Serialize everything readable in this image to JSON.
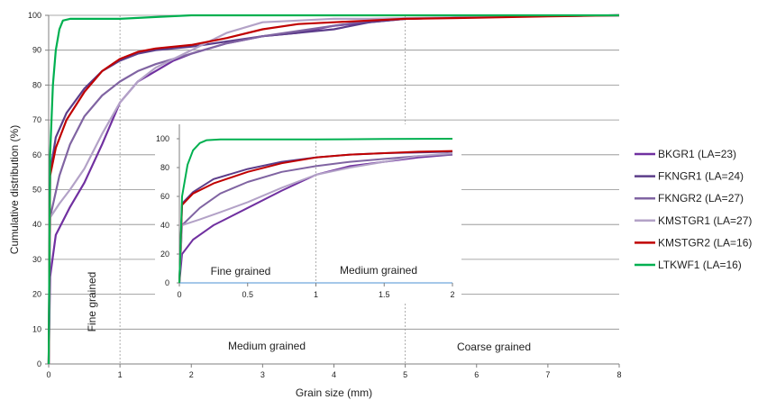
{
  "chart_data": [
    {
      "type": "line",
      "xlabel": "Grain size (mm)",
      "ylabel": "Cumulative distribution (%)",
      "xlim": [
        0,
        8
      ],
      "ylim": [
        0,
        100
      ],
      "xticks": [
        "0",
        "1",
        "2",
        "3",
        "4",
        "5",
        "6",
        "7",
        "8"
      ],
      "yticks": [
        "0",
        "10",
        "20",
        "30",
        "40",
        "50",
        "60",
        "70",
        "80",
        "90",
        "100"
      ],
      "grid": "horizontal",
      "region_labels": [
        "Fine grained",
        "Medium grained",
        "Coarse grained"
      ],
      "region_boundaries": [
        1,
        5
      ],
      "legend_position": "right",
      "series": [
        {
          "name": "BKGR1 (LA=23)",
          "color": "#7030a0",
          "points": [
            [
              0,
              0
            ],
            [
              0.02,
              25
            ],
            [
              0.1,
              37
            ],
            [
              0.3,
              45
            ],
            [
              0.5,
              52
            ],
            [
              0.75,
              63
            ],
            [
              1,
              75
            ],
            [
              1.25,
              81
            ],
            [
              1.5,
              84
            ],
            [
              1.75,
              87
            ],
            [
              2,
              89
            ],
            [
              2.5,
              92
            ],
            [
              3,
              94
            ],
            [
              3.5,
              95
            ],
            [
              4,
              97
            ],
            [
              4.5,
              98
            ],
            [
              5,
              99
            ],
            [
              6,
              99.5
            ],
            [
              7,
              99.8
            ],
            [
              8,
              100
            ]
          ]
        },
        {
          "name": "FKNGR1 (LA=24)",
          "color": "#5c3d8a",
          "points": [
            [
              0,
              0
            ],
            [
              0.02,
              55
            ],
            [
              0.1,
              65
            ],
            [
              0.25,
              72
            ],
            [
              0.5,
              79
            ],
            [
              0.75,
              84
            ],
            [
              1,
              87
            ],
            [
              1.25,
              89
            ],
            [
              1.5,
              90
            ],
            [
              2,
              91
            ],
            [
              2.5,
              92.5
            ],
            [
              3,
              94
            ],
            [
              3.5,
              95
            ],
            [
              4,
              96
            ],
            [
              4.5,
              98
            ],
            [
              5,
              99
            ],
            [
              6,
              99.5
            ],
            [
              7,
              99.8
            ],
            [
              8,
              100
            ]
          ]
        },
        {
          "name": "FKNGR2 (LA=27)",
          "color": "#8064a2",
          "points": [
            [
              0,
              0
            ],
            [
              0.02,
              42
            ],
            [
              0.15,
              54
            ],
            [
              0.3,
              63
            ],
            [
              0.5,
              71
            ],
            [
              0.75,
              77
            ],
            [
              1,
              81
            ],
            [
              1.25,
              84
            ],
            [
              1.5,
              86
            ],
            [
              2,
              89
            ],
            [
              2.5,
              92
            ],
            [
              3,
              94
            ],
            [
              3.5,
              95.5
            ],
            [
              4,
              97
            ],
            [
              4.5,
              98.5
            ],
            [
              5,
              99
            ],
            [
              6,
              99.5
            ],
            [
              7,
              99.8
            ],
            [
              8,
              100
            ]
          ]
        },
        {
          "name": "KMSTGR1 (LA=27)",
          "color": "#b3a2c7",
          "points": [
            [
              0,
              0
            ],
            [
              0.02,
              42
            ],
            [
              0.15,
              46
            ],
            [
              0.3,
              50
            ],
            [
              0.5,
              56
            ],
            [
              0.75,
              66
            ],
            [
              1,
              75
            ],
            [
              1.25,
              81
            ],
            [
              1.5,
              85
            ],
            [
              2,
              90
            ],
            [
              2.5,
              95
            ],
            [
              3,
              98
            ],
            [
              3.5,
              98.5
            ],
            [
              4,
              99
            ],
            [
              4.5,
              99
            ],
            [
              5,
              99.2
            ],
            [
              6,
              99.5
            ],
            [
              7,
              99.8
            ],
            [
              8,
              100
            ]
          ]
        },
        {
          "name": "KMSTGR2 (LA=16)",
          "color": "#c00000",
          "points": [
            [
              0,
              0
            ],
            [
              0.02,
              54
            ],
            [
              0.1,
              62
            ],
            [
              0.25,
              70
            ],
            [
              0.5,
              78
            ],
            [
              0.75,
              84
            ],
            [
              1,
              87.5
            ],
            [
              1.25,
              89.5
            ],
            [
              1.5,
              90.5
            ],
            [
              2,
              91.5
            ],
            [
              2.5,
              93.5
            ],
            [
              3,
              96
            ],
            [
              3.5,
              97.5
            ],
            [
              4,
              98
            ],
            [
              4.5,
              98.5
            ],
            [
              5,
              99
            ],
            [
              6,
              99.3
            ],
            [
              7,
              99.7
            ],
            [
              8,
              100
            ]
          ]
        },
        {
          "name": "LTKWF1 (LA=16)",
          "color": "#00b050",
          "points": [
            [
              0,
              0
            ],
            [
              0.02,
              60
            ],
            [
              0.06,
              80
            ],
            [
              0.1,
              90
            ],
            [
              0.15,
              96
            ],
            [
              0.2,
              98.5
            ],
            [
              0.3,
              99
            ],
            [
              0.5,
              99
            ],
            [
              1,
              99
            ],
            [
              1.5,
              99.5
            ],
            [
              2,
              100
            ],
            [
              4,
              100
            ],
            [
              8,
              100
            ]
          ]
        }
      ]
    },
    {
      "type": "line",
      "xlim": [
        0,
        2
      ],
      "ylim": [
        0,
        100
      ],
      "xticks": [
        "0",
        "0.5",
        "1",
        "1.5",
        "2"
      ],
      "yticks": [
        "0",
        "20",
        "40",
        "60",
        "80",
        "100"
      ],
      "region_labels": [
        "Fine grained",
        "Medium grained"
      ],
      "region_boundaries": [
        1
      ],
      "series": [
        {
          "name": "BKGR1 (LA=23)",
          "color": "#7030a0",
          "points": [
            [
              0,
              0
            ],
            [
              0.02,
              20
            ],
            [
              0.1,
              30
            ],
            [
              0.25,
              40
            ],
            [
              0.5,
              52
            ],
            [
              0.75,
              64
            ],
            [
              1,
              75
            ],
            [
              1.25,
              81
            ],
            [
              1.5,
              84
            ],
            [
              1.75,
              87
            ],
            [
              2,
              89
            ]
          ]
        },
        {
          "name": "FKNGR1 (LA=24)",
          "color": "#5c3d8a",
          "points": [
            [
              0,
              0
            ],
            [
              0.02,
              55
            ],
            [
              0.1,
              63
            ],
            [
              0.25,
              72
            ],
            [
              0.5,
              79
            ],
            [
              0.75,
              84
            ],
            [
              1,
              87
            ],
            [
              1.25,
              89
            ],
            [
              1.5,
              90
            ],
            [
              1.75,
              90.5
            ],
            [
              2,
              91
            ]
          ]
        },
        {
          "name": "FKNGR2 (LA=27)",
          "color": "#8064a2",
          "points": [
            [
              0,
              0
            ],
            [
              0.02,
              40
            ],
            [
              0.15,
              52
            ],
            [
              0.3,
              62
            ],
            [
              0.5,
              70
            ],
            [
              0.75,
              77
            ],
            [
              1,
              81
            ],
            [
              1.25,
              84
            ],
            [
              1.5,
              86
            ],
            [
              1.75,
              88
            ],
            [
              2,
              89
            ]
          ]
        },
        {
          "name": "KMSTGR1 (LA=27)",
          "color": "#b3a2c7",
          "points": [
            [
              0,
              0
            ],
            [
              0.02,
              40
            ],
            [
              0.15,
              44
            ],
            [
              0.3,
              49
            ],
            [
              0.5,
              56
            ],
            [
              0.75,
              66
            ],
            [
              1,
              75
            ],
            [
              1.25,
              80
            ],
            [
              1.5,
              84
            ],
            [
              1.75,
              88
            ],
            [
              2,
              90
            ]
          ]
        },
        {
          "name": "KMSTGR2 (LA=16)",
          "color": "#c00000",
          "points": [
            [
              0,
              0
            ],
            [
              0.02,
              54
            ],
            [
              0.1,
              62
            ],
            [
              0.25,
              69
            ],
            [
              0.5,
              77
            ],
            [
              0.75,
              83
            ],
            [
              1,
              87
            ],
            [
              1.25,
              89
            ],
            [
              1.5,
              90
            ],
            [
              1.75,
              91
            ],
            [
              2,
              91.5
            ]
          ]
        },
        {
          "name": "LTKWF1 (LA=16)",
          "color": "#00b050",
          "points": [
            [
              0,
              0
            ],
            [
              0.02,
              60
            ],
            [
              0.06,
              82
            ],
            [
              0.1,
              92
            ],
            [
              0.15,
              97
            ],
            [
              0.2,
              99
            ],
            [
              0.3,
              99.5
            ],
            [
              0.5,
              99.5
            ],
            [
              1,
              99.5
            ],
            [
              1.5,
              99.8
            ],
            [
              2,
              100
            ]
          ]
        }
      ]
    }
  ]
}
